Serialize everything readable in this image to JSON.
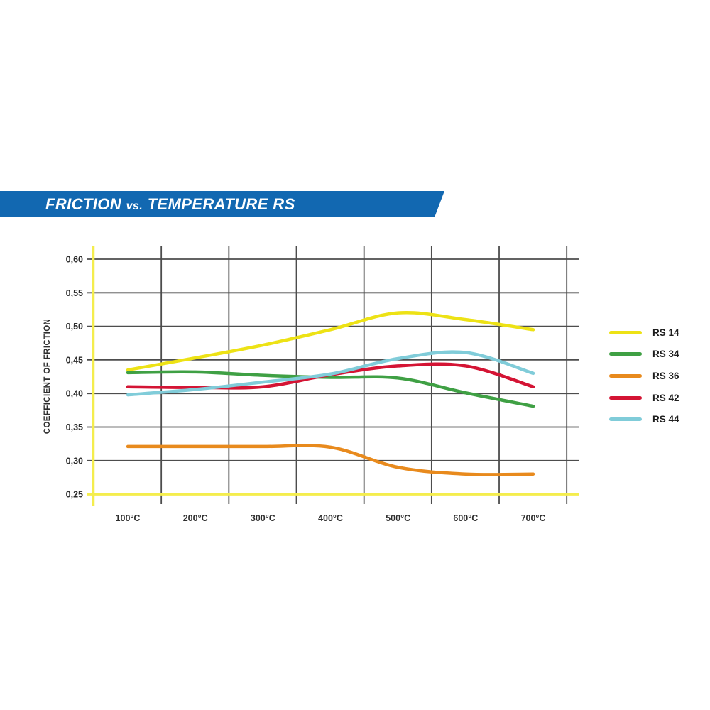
{
  "banner": {
    "full_title": "FRICTION vs. TEMPERATURE RS",
    "text_parts": {
      "friction": "FRICTION",
      "vs": "vs.",
      "temperature_rs": "TEMPERATURE RS"
    },
    "bg_color": "#1268b1",
    "text_color": "#ffffff"
  },
  "chart_data": {
    "type": "line",
    "title": "FRICTION vs. TEMPERATURE RS",
    "xlabel": "",
    "ylabel": "COEFFICIENT OF FRICTION",
    "x_categories": [
      "100°C",
      "200°C",
      "300°C",
      "400°C",
      "500°C",
      "600°C",
      "700°C"
    ],
    "ytick_labels": [
      "0,60",
      "0,55",
      "0,50",
      "0,45",
      "0,40",
      "0,35",
      "0,30",
      "0,25"
    ],
    "ylim": [
      0.25,
      0.6
    ],
    "y_step": 0.05,
    "grid": true,
    "legend_position": "right",
    "colors": {
      "grid": "#4d4d4d",
      "axis_yellow": "#f4ed4d",
      "tick_text": "#2d2d2d"
    },
    "series": [
      {
        "name": "RS 14",
        "color": "#ede215",
        "values": [
          0.435,
          0.453,
          0.472,
          0.495,
          0.52,
          0.51,
          0.495
        ]
      },
      {
        "name": "RS 34",
        "color": "#3fa044",
        "values": [
          0.431,
          0.432,
          0.427,
          0.424,
          0.423,
          0.401,
          0.381
        ]
      },
      {
        "name": "RS 36",
        "color": "#e88a1d",
        "values": [
          0.321,
          0.321,
          0.321,
          0.32,
          0.29,
          0.28,
          0.28
        ]
      },
      {
        "name": "RS 42",
        "color": "#d41434",
        "values": [
          0.41,
          0.409,
          0.41,
          0.428,
          0.441,
          0.441,
          0.41
        ]
      },
      {
        "name": "RS 44",
        "color": "#80ccd9",
        "values": [
          0.398,
          0.406,
          0.417,
          0.429,
          0.452,
          0.461,
          0.43
        ]
      }
    ]
  }
}
